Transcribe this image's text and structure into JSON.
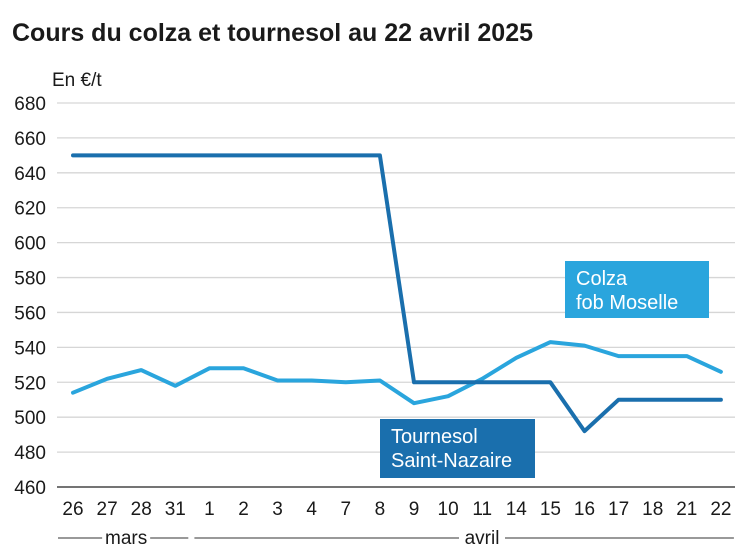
{
  "chart_data": {
    "type": "line",
    "title": "Cours du colza et tournesol au 22 avril 2025",
    "ylabel": "En €/t",
    "xlabel": "",
    "ylim": [
      460,
      680
    ],
    "yticks": [
      460,
      480,
      500,
      520,
      540,
      560,
      580,
      600,
      620,
      640,
      660,
      680
    ],
    "grid": true,
    "categories": [
      "26",
      "27",
      "28",
      "31",
      "1",
      "2",
      "3",
      "4",
      "7",
      "8",
      "9",
      "10",
      "11",
      "14",
      "15",
      "16",
      "17",
      "18",
      "21",
      "22"
    ],
    "month_groups": [
      {
        "label": "mars",
        "start": 0,
        "end": 3
      },
      {
        "label": "avril",
        "start": 4,
        "end": 19
      }
    ],
    "series": [
      {
        "name_lines": [
          "Tournesol",
          "Saint-Nazaire"
        ],
        "color": "#1a6fad",
        "values": [
          650,
          650,
          650,
          650,
          650,
          650,
          650,
          650,
          650,
          650,
          520,
          520,
          520,
          520,
          520,
          492,
          510,
          510,
          510,
          510
        ]
      },
      {
        "name_lines": [
          "Colza",
          "fob Moselle"
        ],
        "color": "#2aa5dd",
        "values": [
          514,
          522,
          527,
          518,
          528,
          528,
          521,
          521,
          520,
          521,
          508,
          512,
          522,
          534,
          543,
          541,
          535,
          535,
          535,
          526
        ]
      }
    ]
  }
}
